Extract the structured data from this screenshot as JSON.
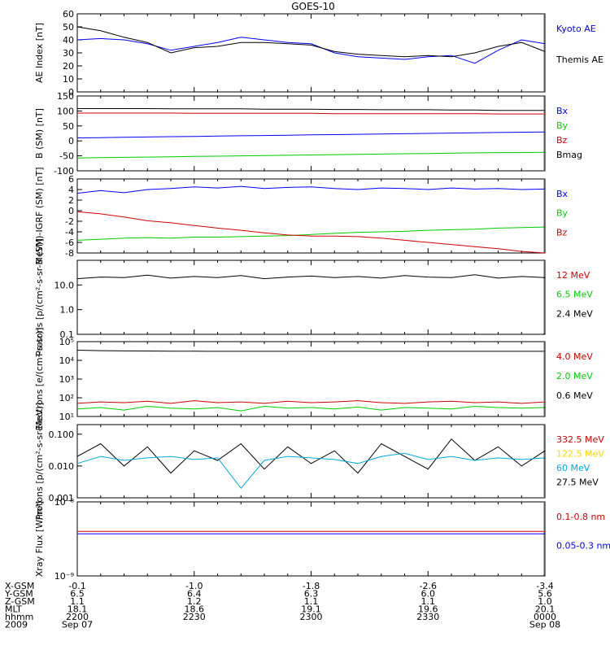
{
  "title": "GOES-10",
  "colors": {
    "black": "#000000",
    "blue": "#0000ff",
    "red": "#d00000",
    "green": "#00cc00",
    "cyan": "#00aadd",
    "yellow": "#ffd700",
    "frame": "#000000"
  },
  "panels": [
    {
      "id": "ae",
      "ylabel": "AE Index [nT]",
      "scale": "linear",
      "ylim": [
        0,
        60
      ],
      "ticks": [
        "60",
        "50",
        "40",
        "30",
        "20",
        "10",
        "0"
      ],
      "tickvals": [
        60,
        50,
        40,
        30,
        20,
        10,
        0
      ],
      "legend": [
        {
          "text": "Kyoto AE",
          "color": "#0000ff"
        },
        {
          "text": "Themis AE",
          "color": "#000000"
        }
      ]
    },
    {
      "id": "bsm",
      "ylabel": "B (SM) [nT]",
      "scale": "linear",
      "ylim": [
        -100,
        150
      ],
      "ticks": [
        "150",
        "100",
        "50",
        "0",
        "-50",
        "-100"
      ],
      "tickvals": [
        150,
        100,
        50,
        0,
        -50,
        -100
      ],
      "legend": [
        {
          "text": "Bx",
          "color": "#0000ff"
        },
        {
          "text": "By",
          "color": "#00cc00"
        },
        {
          "text": "Bz",
          "color": "#d00000"
        },
        {
          "text": "Bmag",
          "color": "#000000"
        }
      ]
    },
    {
      "id": "bdiff",
      "ylabel": "B (SM)-IGRF (SM) [nT]",
      "scale": "linear",
      "ylim": [
        -8,
        6
      ],
      "ticks": [
        "6",
        "4",
        "2",
        "0",
        "-2",
        "-4",
        "-6",
        "-8"
      ],
      "tickvals": [
        6,
        4,
        2,
        0,
        -2,
        -4,
        -6,
        -8
      ],
      "legend": [
        {
          "text": "Bx",
          "color": "#0000ff"
        },
        {
          "text": "By",
          "color": "#00cc00"
        },
        {
          "text": "Bz",
          "color": "#d00000"
        }
      ]
    },
    {
      "id": "protons1",
      "ylabel": "Protons [p/(cm²-s-sr-MeV)]",
      "scale": "log",
      "ylim": [
        0.1,
        100
      ],
      "ticks": [
        "10.0",
        "1.0",
        "0.1"
      ],
      "tickvals": [
        10,
        1,
        0.1
      ],
      "legend": [
        {
          "text": "12 MeV",
          "color": "#d00000"
        },
        {
          "text": "6.5 MeV",
          "color": "#00cc00"
        },
        {
          "text": "2.4 MeV",
          "color": "#000000"
        }
      ]
    },
    {
      "id": "electrons",
      "ylabel": "Electrons [e/(cm²-s-sr)]",
      "scale": "log",
      "ylim": [
        10,
        100000
      ],
      "ticks": [
        "10⁵",
        "10⁴",
        "10³",
        "10²",
        "10¹"
      ],
      "tickvals": [
        100000,
        10000,
        1000,
        100,
        10
      ],
      "legend": [
        {
          "text": "4.0 MeV",
          "color": "#d00000"
        },
        {
          "text": "2.0 MeV",
          "color": "#00cc00"
        },
        {
          "text": "0.6 MeV",
          "color": "#000000"
        }
      ]
    },
    {
      "id": "protons2",
      "ylabel": "Protons [p/(cm²-s-sr-MeV)]",
      "scale": "log",
      "ylim": [
        0.001,
        0.2
      ],
      "ticks": [
        "0.100",
        "0.010",
        "0.001"
      ],
      "tickvals": [
        0.1,
        0.01,
        0.001
      ],
      "legend": [
        {
          "text": "332.5 MeV",
          "color": "#d00000"
        },
        {
          "text": "122.5 MeV",
          "color": "#ffd700"
        },
        {
          "text": "60 MeV",
          "color": "#00aadd"
        },
        {
          "text": "27.5 MeV",
          "color": "#000000"
        }
      ]
    },
    {
      "id": "xray",
      "ylabel": "Xray Flux [W/m²]",
      "scale": "log",
      "ylim": [
        1e-09,
        1e-08
      ],
      "ticks": [
        "10⁻⁸",
        "10⁻⁹"
      ],
      "tickvals": [
        1e-08,
        1e-09
      ],
      "legend": [
        {
          "text": "0.1-0.8 nm",
          "color": "#d00000"
        },
        {
          "text": "0.05-0.3 nm",
          "color": "#0000ff"
        }
      ]
    }
  ],
  "footer": {
    "rows": [
      {
        "label": "X-GSM",
        "values": [
          "-0.1",
          "-1.0",
          "-1.8",
          "-2.6",
          "-3.4"
        ]
      },
      {
        "label": "Y-GSM",
        "values": [
          "6.5",
          "6.4",
          "6.3",
          "6.0",
          "5.6"
        ]
      },
      {
        "label": "Z-GSM",
        "values": [
          "1.1",
          "1.2",
          "1.1",
          "1.1",
          "1.0"
        ]
      },
      {
        "label": "MLT",
        "values": [
          "18.1",
          "18.6",
          "19.1",
          "19.6",
          "20.1"
        ]
      },
      {
        "label": "hhmm",
        "values": [
          "2200",
          "2230",
          "2300",
          "2330",
          "0000"
        ]
      },
      {
        "label": "2009",
        "values": [
          "Sep 07",
          "",
          "",
          "",
          "Sep 08"
        ]
      }
    ]
  },
  "chart_data": {
    "type": "line",
    "title": "GOES-10",
    "x": [
      "2200",
      "2230",
      "2300",
      "2330",
      "0000"
    ],
    "xlabel": "",
    "series_by_panel": {
      "ae": [
        {
          "name": "Kyoto AE",
          "values": [
            40,
            41,
            40,
            37,
            32,
            35,
            38,
            42,
            40,
            38,
            37,
            30,
            27,
            26,
            25,
            27,
            28,
            22,
            32,
            40,
            37
          ]
        },
        {
          "name": "Themis AE",
          "values": [
            50,
            47,
            42,
            38,
            30,
            34,
            35,
            38,
            38,
            37,
            36,
            31,
            29,
            28,
            27,
            28,
            27,
            30,
            35,
            38,
            31
          ]
        }
      ],
      "bsm": [
        {
          "name": "Bx",
          "values": [
            10,
            11,
            12,
            13,
            14,
            15,
            16,
            17,
            18,
            19,
            20,
            21,
            22,
            23,
            24,
            25,
            26,
            27,
            28,
            29,
            30
          ]
        },
        {
          "name": "By",
          "values": [
            -57,
            -56,
            -55,
            -54,
            -53,
            -52,
            -51,
            -50,
            -49,
            -48,
            -47,
            -46,
            -45,
            -44,
            -43,
            -42,
            -41,
            -40,
            -39,
            -39,
            -38
          ]
        },
        {
          "name": "Bz",
          "values": [
            93,
            93,
            93,
            93,
            93,
            92,
            92,
            92,
            92,
            92,
            92,
            91,
            91,
            91,
            91,
            91,
            91,
            91,
            90,
            90,
            90
          ]
        },
        {
          "name": "Bmag",
          "values": [
            108,
            108,
            108,
            108,
            107,
            107,
            107,
            107,
            106,
            106,
            106,
            105,
            105,
            104,
            104,
            104,
            103,
            103,
            102,
            102,
            102
          ]
        }
      ],
      "bdiff": [
        {
          "name": "Bx",
          "values": [
            3.3,
            3.8,
            3.4,
            4.0,
            4.2,
            4.5,
            4.3,
            4.6,
            4.2,
            4.4,
            4.5,
            4.2,
            4.0,
            4.3,
            4.2,
            4.0,
            4.3,
            4.1,
            4.2,
            4.0,
            4.1
          ]
        },
        {
          "name": "By",
          "values": [
            -5.6,
            -5.4,
            -5.2,
            -5.1,
            -5.2,
            -5.0,
            -5.0,
            -4.9,
            -4.8,
            -4.7,
            -4.5,
            -4.3,
            -4.1,
            -4.0,
            -3.9,
            -3.7,
            -3.6,
            -3.5,
            -3.3,
            -3.2,
            -3.1
          ]
        },
        {
          "name": "Bz",
          "values": [
            -0.2,
            -0.6,
            -1.2,
            -1.9,
            -2.3,
            -2.8,
            -3.3,
            -3.7,
            -4.2,
            -4.6,
            -4.8,
            -4.8,
            -4.9,
            -5.2,
            -5.6,
            -6.0,
            -6.4,
            -6.8,
            -7.2,
            -7.7,
            -8.0
          ]
        }
      ],
      "protons1": [
        {
          "name": "2.4 MeV",
          "values": [
            18,
            21,
            20,
            25,
            19,
            22,
            20,
            24,
            18,
            21,
            23,
            20,
            22,
            19,
            24,
            21,
            20,
            26,
            19,
            22,
            20
          ]
        }
      ],
      "electrons": [
        {
          "name": "0.6 MeV",
          "values": [
            35000,
            33000,
            32000,
            31500,
            31000,
            30800,
            30500,
            30500,
            30500,
            30500,
            30500,
            30500,
            30500,
            30500,
            30500,
            30500,
            30500,
            30500,
            30500,
            30500,
            30500
          ]
        },
        {
          "name": "4.0 MeV",
          "values": [
            50,
            60,
            55,
            65,
            50,
            70,
            55,
            60,
            50,
            65,
            55,
            60,
            70,
            55,
            50,
            60,
            65,
            55,
            60,
            50,
            60
          ]
        },
        {
          "name": "2.0 MeV",
          "values": [
            25,
            30,
            22,
            35,
            28,
            25,
            30,
            20,
            35,
            28,
            30,
            25,
            32,
            22,
            30,
            28,
            25,
            35,
            30,
            28,
            30
          ]
        }
      ],
      "protons2": [
        {
          "name": "27.5 MeV",
          "values": [
            0.02,
            0.05,
            0.01,
            0.04,
            0.006,
            0.03,
            0.015,
            0.05,
            0.008,
            0.04,
            0.012,
            0.03,
            0.006,
            0.05,
            0.02,
            0.008,
            0.07,
            0.015,
            0.04,
            0.01,
            0.03
          ]
        },
        {
          "name": "60 MeV",
          "values": [
            0.012,
            0.02,
            0.015,
            0.018,
            0.02,
            0.016,
            0.018,
            0.002,
            0.015,
            0.02,
            0.018,
            0.016,
            0.012,
            0.02,
            0.025,
            0.016,
            0.02,
            0.015,
            0.018,
            0.016,
            0.018
          ]
        }
      ],
      "xray": [
        {
          "name": "0.1-0.8 nm",
          "values": [
            4e-09,
            4e-09,
            4e-09,
            4e-09,
            4e-09,
            4e-09,
            4e-09,
            4e-09,
            4e-09,
            4e-09,
            4e-09,
            4e-09,
            4e-09,
            4e-09,
            4e-09,
            4e-09,
            4e-09,
            4e-09,
            4e-09,
            4e-09,
            4e-09
          ]
        },
        {
          "name": "0.05-0.3 nm",
          "values": [
            3.7e-09,
            3.7e-09,
            3.7e-09,
            3.7e-09,
            3.7e-09,
            3.7e-09,
            3.7e-09,
            3.7e-09,
            3.7e-09,
            3.7e-09,
            3.7e-09,
            3.7e-09,
            3.7e-09,
            3.7e-09,
            3.7e-09,
            3.7e-09,
            3.7e-09,
            3.7e-09,
            3.7e-09,
            3.7e-09,
            3.7e-09
          ]
        }
      ]
    }
  }
}
